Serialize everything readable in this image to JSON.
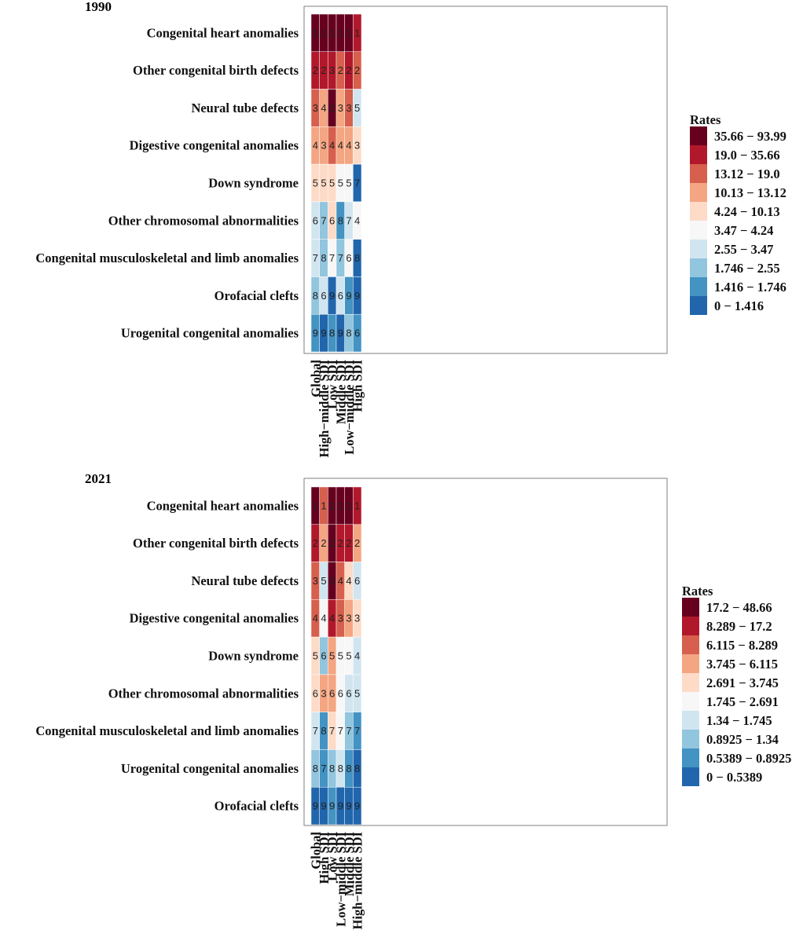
{
  "palette": [
    "#67001f",
    "#b2182b",
    "#d6604d",
    "#f4a582",
    "#fddbc7",
    "#f7f7f7",
    "#d1e5f0",
    "#92c5de",
    "#4393c3",
    "#2166ac"
  ],
  "grid_line_color": "#ffffff",
  "frame_color": "#7f7f7f",
  "chart_data": [
    {
      "type": "heatmap",
      "title": "1990",
      "rows": [
        "Congenital heart anomalies",
        "Other congenital birth defects",
        "Neural tube defects",
        "Digestive congenital anomalies",
        "Down syndrome",
        "Other chromosomal abnormalities",
        "Congenital musculoskeletal and limb anomalies",
        "Orofacial clefts",
        "Urogenital congenital anomalies"
      ],
      "columns": [
        "Global",
        "High−middle SDI",
        "Low SDI",
        "Middle SDI",
        "Low−middle SDI",
        "High SDI"
      ],
      "ranks": [
        [
          1,
          1,
          1,
          1,
          1,
          1
        ],
        [
          2,
          2,
          3,
          2,
          2,
          2
        ],
        [
          3,
          4,
          2,
          3,
          3,
          5
        ],
        [
          4,
          3,
          4,
          4,
          4,
          3
        ],
        [
          5,
          5,
          5,
          5,
          5,
          7
        ],
        [
          6,
          7,
          6,
          8,
          7,
          4
        ],
        [
          7,
          8,
          7,
          7,
          6,
          8
        ],
        [
          8,
          6,
          9,
          6,
          9,
          9
        ],
        [
          9,
          9,
          8,
          9,
          8,
          6
        ]
      ],
      "color_bins": [
        [
          0,
          0,
          0,
          0,
          0,
          1
        ],
        [
          1,
          1,
          1,
          2,
          1,
          2
        ],
        [
          2,
          3,
          0,
          3,
          2,
          6
        ],
        [
          3,
          3,
          2,
          3,
          3,
          4
        ],
        [
          4,
          4,
          4,
          5,
          5,
          9
        ],
        [
          6,
          7,
          4,
          8,
          6,
          5
        ],
        [
          6,
          7,
          5,
          7,
          5,
          9
        ],
        [
          7,
          6,
          9,
          6,
          8,
          9
        ],
        [
          8,
          9,
          8,
          9,
          7,
          8
        ]
      ],
      "legend": {
        "title": "Rates",
        "labels": [
          "35.66 − 93.99",
          "19.0 − 35.66",
          "13.12 − 19.0",
          "10.13 − 13.12",
          "4.24 − 10.13",
          "3.47 − 4.24",
          "2.55 − 3.47",
          "1.746 − 2.55",
          "1.416 − 1.746",
          "0 − 1.416"
        ]
      }
    },
    {
      "type": "heatmap",
      "title": "2021",
      "rows": [
        "Congenital heart anomalies",
        "Other congenital birth defects",
        "Neural tube defects",
        "Digestive congenital anomalies",
        "Down syndrome",
        "Other chromosomal abnormalities",
        "Congenital musculoskeletal and limb anomalies",
        "Urogenital congenital anomalies",
        "Orofacial clefts"
      ],
      "columns": [
        "Global",
        "High SDI",
        "Low SDI",
        "Low−middle SDI",
        "Middle SDI",
        "High−middle SDI"
      ],
      "ranks": [
        [
          1,
          1,
          1,
          1,
          1,
          1
        ],
        [
          2,
          2,
          2,
          2,
          2,
          2
        ],
        [
          3,
          5,
          3,
          4,
          4,
          6
        ],
        [
          4,
          4,
          4,
          3,
          3,
          3
        ],
        [
          5,
          6,
          5,
          5,
          5,
          4
        ],
        [
          6,
          3,
          6,
          6,
          6,
          5
        ],
        [
          7,
          8,
          7,
          7,
          7,
          7
        ],
        [
          8,
          7,
          8,
          8,
          8,
          8
        ],
        [
          9,
          9,
          9,
          9,
          9,
          9
        ]
      ],
      "color_bins": [
        [
          0,
          2,
          0,
          0,
          0,
          1
        ],
        [
          1,
          3,
          0,
          1,
          1,
          3
        ],
        [
          2,
          6,
          0,
          2,
          4,
          6
        ],
        [
          2,
          5,
          1,
          2,
          3,
          4
        ],
        [
          4,
          7,
          3,
          5,
          5,
          6
        ],
        [
          4,
          3,
          3,
          5,
          6,
          6
        ],
        [
          6,
          8,
          4,
          5,
          7,
          8
        ],
        [
          7,
          8,
          7,
          6,
          8,
          9
        ],
        [
          9,
          9,
          8,
          9,
          9,
          9
        ]
      ],
      "legend": {
        "title": "Rates",
        "labels": [
          "17.2 − 48.66",
          "8.289 − 17.2",
          "6.115 − 8.289",
          "3.745 − 6.115",
          "2.691 − 3.745",
          "1.745 − 2.691",
          "1.34 − 1.745",
          "0.8925 − 1.34",
          "0.5389 − 0.8925",
          "0 − 0.5389"
        ]
      }
    }
  ]
}
